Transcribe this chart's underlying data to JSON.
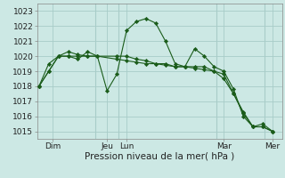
{
  "xlabel": "Pression niveau de la mer( hPa )",
  "bg_color": "#cce8e4",
  "grid_color": "#a8ccc8",
  "line_color": "#1a5c1a",
  "marker_color": "#1a5c1a",
  "ylim": [
    1014.5,
    1023.5
  ],
  "yticks": [
    1015,
    1016,
    1017,
    1018,
    1019,
    1020,
    1021,
    1022,
    1023
  ],
  "xlim": [
    -0.1,
    12.5
  ],
  "series": [
    {
      "x": [
        0.0,
        0.5,
        1.0,
        1.5,
        2.0,
        2.5,
        3.0,
        3.5,
        4.0,
        4.5,
        5.0,
        5.5,
        6.0,
        6.5,
        7.0,
        7.5,
        8.0,
        8.5,
        9.0,
        9.5,
        10.0,
        10.5,
        11.0,
        11.5,
        12.0
      ],
      "y": [
        1018.0,
        1019.0,
        1020.0,
        1020.0,
        1019.8,
        1020.3,
        1020.0,
        1017.7,
        1018.8,
        1021.7,
        1022.3,
        1022.5,
        1022.2,
        1021.0,
        1019.5,
        1019.3,
        1020.5,
        1020.0,
        1019.3,
        1019.0,
        1017.8,
        1016.0,
        1015.3,
        1015.5,
        1015.0
      ]
    },
    {
      "x": [
        0.0,
        0.5,
        1.0,
        1.5,
        2.0,
        2.5,
        3.0,
        4.0,
        4.5,
        5.0,
        5.5,
        6.0,
        6.5,
        7.0,
        7.5,
        8.0,
        8.5,
        9.0,
        9.5,
        10.0,
        10.5,
        11.0,
        11.5,
        12.0
      ],
      "y": [
        1018.0,
        1019.0,
        1020.0,
        1020.0,
        1020.0,
        1020.0,
        1020.0,
        1020.0,
        1020.0,
        1019.8,
        1019.7,
        1019.5,
        1019.5,
        1019.3,
        1019.3,
        1019.3,
        1019.3,
        1019.0,
        1018.8,
        1017.5,
        1016.2,
        1015.3,
        1015.3,
        1015.0
      ]
    },
    {
      "x": [
        0.0,
        0.5,
        1.0,
        1.5,
        2.0,
        2.5,
        3.0,
        4.0,
        4.5,
        5.0,
        5.5,
        6.0,
        6.5,
        7.0,
        7.5,
        8.0,
        8.5,
        9.0,
        9.5,
        10.0,
        10.5,
        11.0,
        11.5,
        12.0
      ],
      "y": [
        1018.0,
        1019.5,
        1020.0,
        1020.3,
        1020.1,
        1020.0,
        1020.0,
        1019.8,
        1019.7,
        1019.6,
        1019.5,
        1019.5,
        1019.4,
        1019.3,
        1019.3,
        1019.2,
        1019.1,
        1019.0,
        1018.5,
        1017.5,
        1016.3,
        1015.3,
        1015.3,
        1015.0
      ]
    }
  ],
  "vlines_x": [
    2.9,
    4.1,
    9.1,
    11.6
  ],
  "xtick_positions": [
    0.7,
    3.5,
    4.5,
    9.5,
    12.0
  ],
  "xtick_labels": [
    "Dim",
    "Jeu",
    "Lun",
    "Mar",
    "Mer"
  ]
}
